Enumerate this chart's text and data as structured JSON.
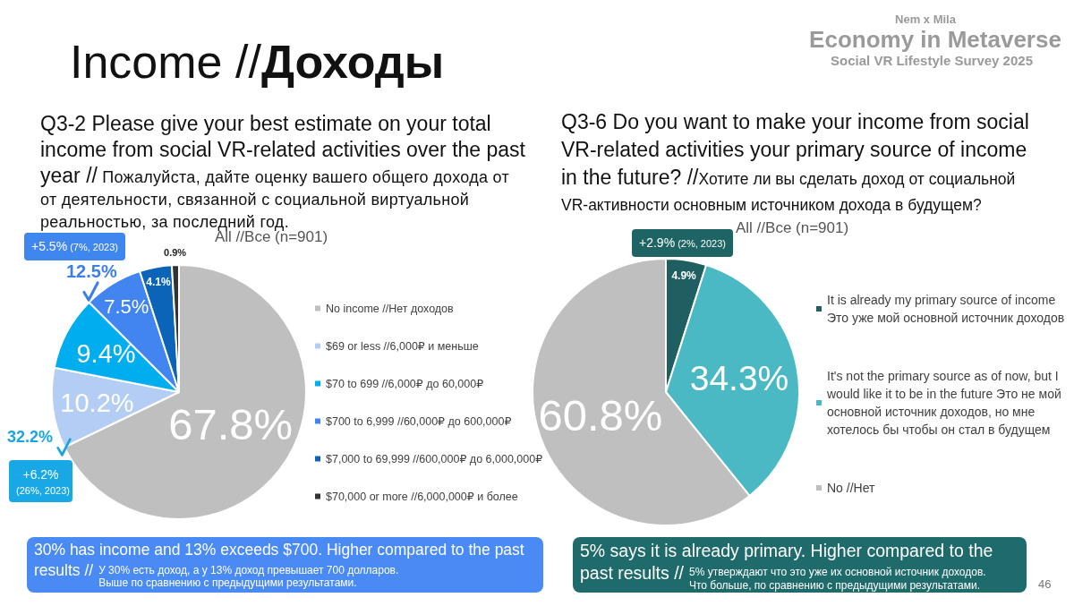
{
  "chart_data": [
    {
      "type": "pie",
      "title": "Q3-2 Please give your best estimate on your total income from social VR-related activities over the past year // Пожалуйста, дайте оценку вашего общего дохода от от деятельности, связанной с социальной виртуальной реальностью, за последний год.",
      "categories": [
        "No income //Нет доходов",
        "$69 or less //6,000₽ и меньше",
        "$70 to 699 //6,000₽ до 60,000₽",
        "$700 to 6,999 //60,000₽ до 600,000₽",
        "$7,000 to 69,999 //600,000₽ до 6,000,000₽",
        "$70,000 or more //6,000,000₽ и более"
      ],
      "values": [
        67.8,
        10.2,
        9.4,
        7.5,
        4.1,
        0.9
      ],
      "value_labels": [
        "67.8%",
        "10.2%",
        "9.4%",
        "7.5%",
        "4.1%",
        "0.9%"
      ],
      "colors": [
        "#bfbfbf",
        "#b4cdf5",
        "#00adee",
        "#4285f0",
        "#0b64b8",
        "#333333"
      ],
      "legend": "right",
      "annotations": [
        "Income //Доходы",
        "All //Все (n=901)",
        "+5.5% (7%, 2023)",
        "12.5%",
        "32.2%",
        "+6.2% (26%, 2023)",
        "30% has income and 13% exceeds $700. Higher compared to the past results // У 30% есть доход, а у 13% доход превышает 700 долларов. Выше по сравнению с предыдущими результатами."
      ]
    },
    {
      "type": "pie",
      "title": "Q3-6 Do you want to make your income from social VR-related activities your primary source of income in the future? //Хотите ли вы сделать доход от социальной VR-активности основным источником дохода в будущем?",
      "categories": [
        "It is already my primary source of income Это уже мой основной источник доходов",
        "It's not the primary source as of now, but I would like it to be in the future Это не мой основной источник доходов, но мне хотелось бы чтобы он стал в будущем",
        "No //Нет"
      ],
      "values": [
        4.9,
        34.3,
        60.8
      ],
      "value_labels": [
        "4.9%",
        "34.3%",
        "60.8%"
      ],
      "colors": [
        "#205f61",
        "#4bb9c4",
        "#bfbfbf"
      ],
      "legend": "right",
      "annotations": [
        "Nem x Mila",
        "Economy in Metaverse",
        "Social VR Lifestyle Survey 2025",
        "All //Все (n=901)",
        "+2.9% (2%, 2023)",
        "5% says it is already primary. Higher compared to the past results // 5% утверждают что это уже их основной источник доходов. Что больше, по сравнению с предыдущими результатами.",
        "46"
      ]
    }
  ]
}
